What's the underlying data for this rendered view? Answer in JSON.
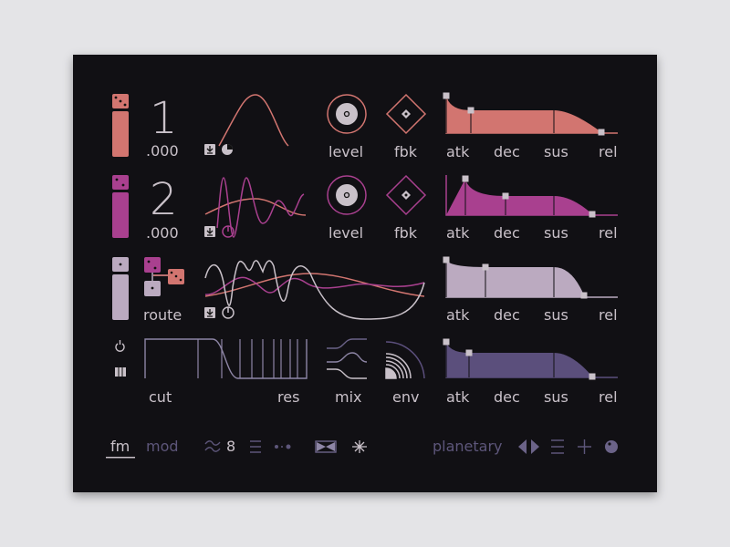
{
  "colors": {
    "op1": "#d27570",
    "op2": "#a9408f",
    "op3": "#bbaac0",
    "filter": "#5b4f7c",
    "text": "#c9c1c9",
    "dim": "#5d567a",
    "bg": "#111014"
  },
  "operators": [
    {
      "number": "1",
      "fine": ".000",
      "level_label": "level",
      "fbk_label": "fbk"
    },
    {
      "number": "2",
      "fine": ".000",
      "level_label": "level",
      "fbk_label": "fbk"
    },
    {
      "route_label": "route"
    }
  ],
  "filter": {
    "cut_label": "cut",
    "res_label": "res",
    "mix_label": "mix",
    "env_label": "env"
  },
  "envelope_labels": [
    "atk",
    "dec",
    "sus",
    "rel"
  ],
  "footer": {
    "tab_fm": "fm",
    "tab_mod": "mod",
    "voices": "8",
    "preset": "planetary",
    "active_tab": "fm"
  },
  "icons": [
    "dice-icon",
    "download-icon",
    "pie-icon",
    "power-icon",
    "keyboard-icon",
    "approx-icon",
    "lines-icon",
    "dots-icon",
    "bowtie-icon",
    "sparkle-icon",
    "prev-next-icon",
    "menu-icon",
    "plus-icon",
    "planet-icon"
  ]
}
